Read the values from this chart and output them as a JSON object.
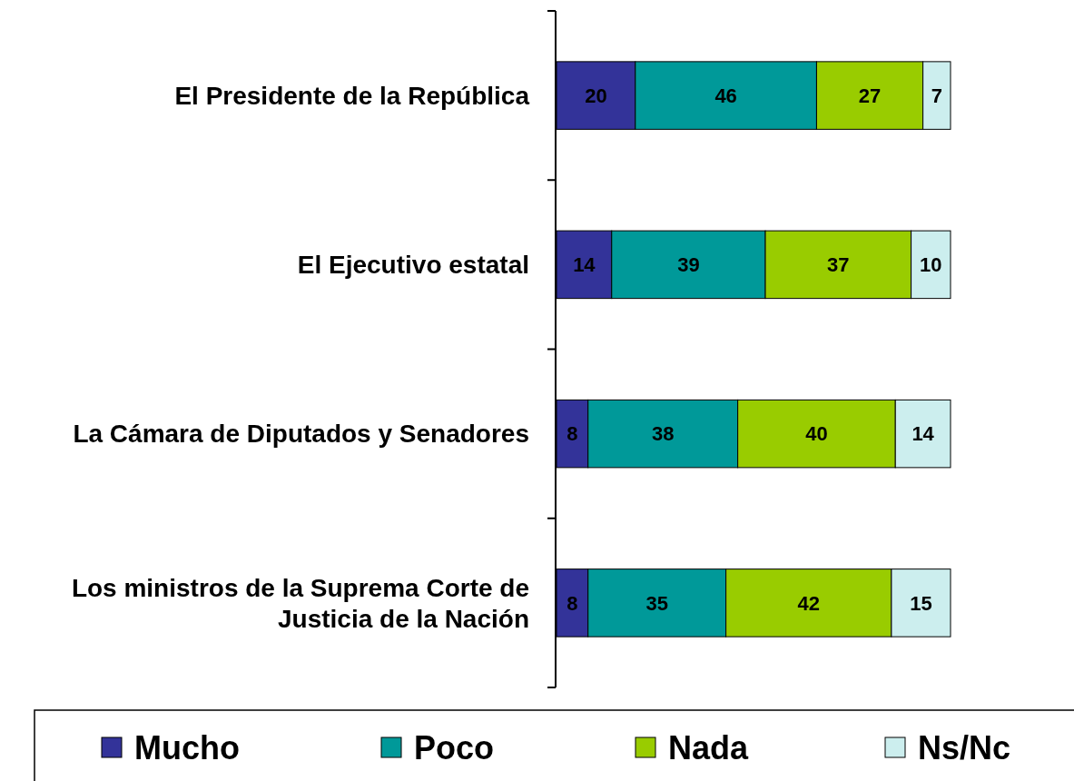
{
  "chart_data": {
    "type": "bar",
    "orientation": "horizontal",
    "stacked": true,
    "data_labels": true,
    "legend": "bottom",
    "categories": [
      "El Presidente de la República",
      "El Ejecutivo estatal",
      "La Cámara de Diputados y Senadores",
      "Los ministros de la Suprema Corte de Justicia de la Nación"
    ],
    "series": [
      {
        "name": "Mucho",
        "color": "#333399",
        "values": [
          20,
          14,
          8,
          8
        ]
      },
      {
        "name": "Poco",
        "color": "#009999",
        "values": [
          46,
          39,
          38,
          35
        ]
      },
      {
        "name": "Nada",
        "color": "#99cc00",
        "values": [
          27,
          37,
          40,
          42
        ]
      },
      {
        "name": "Ns/Nc",
        "color": "#cceeee",
        "values": [
          7,
          10,
          14,
          15
        ]
      }
    ]
  }
}
